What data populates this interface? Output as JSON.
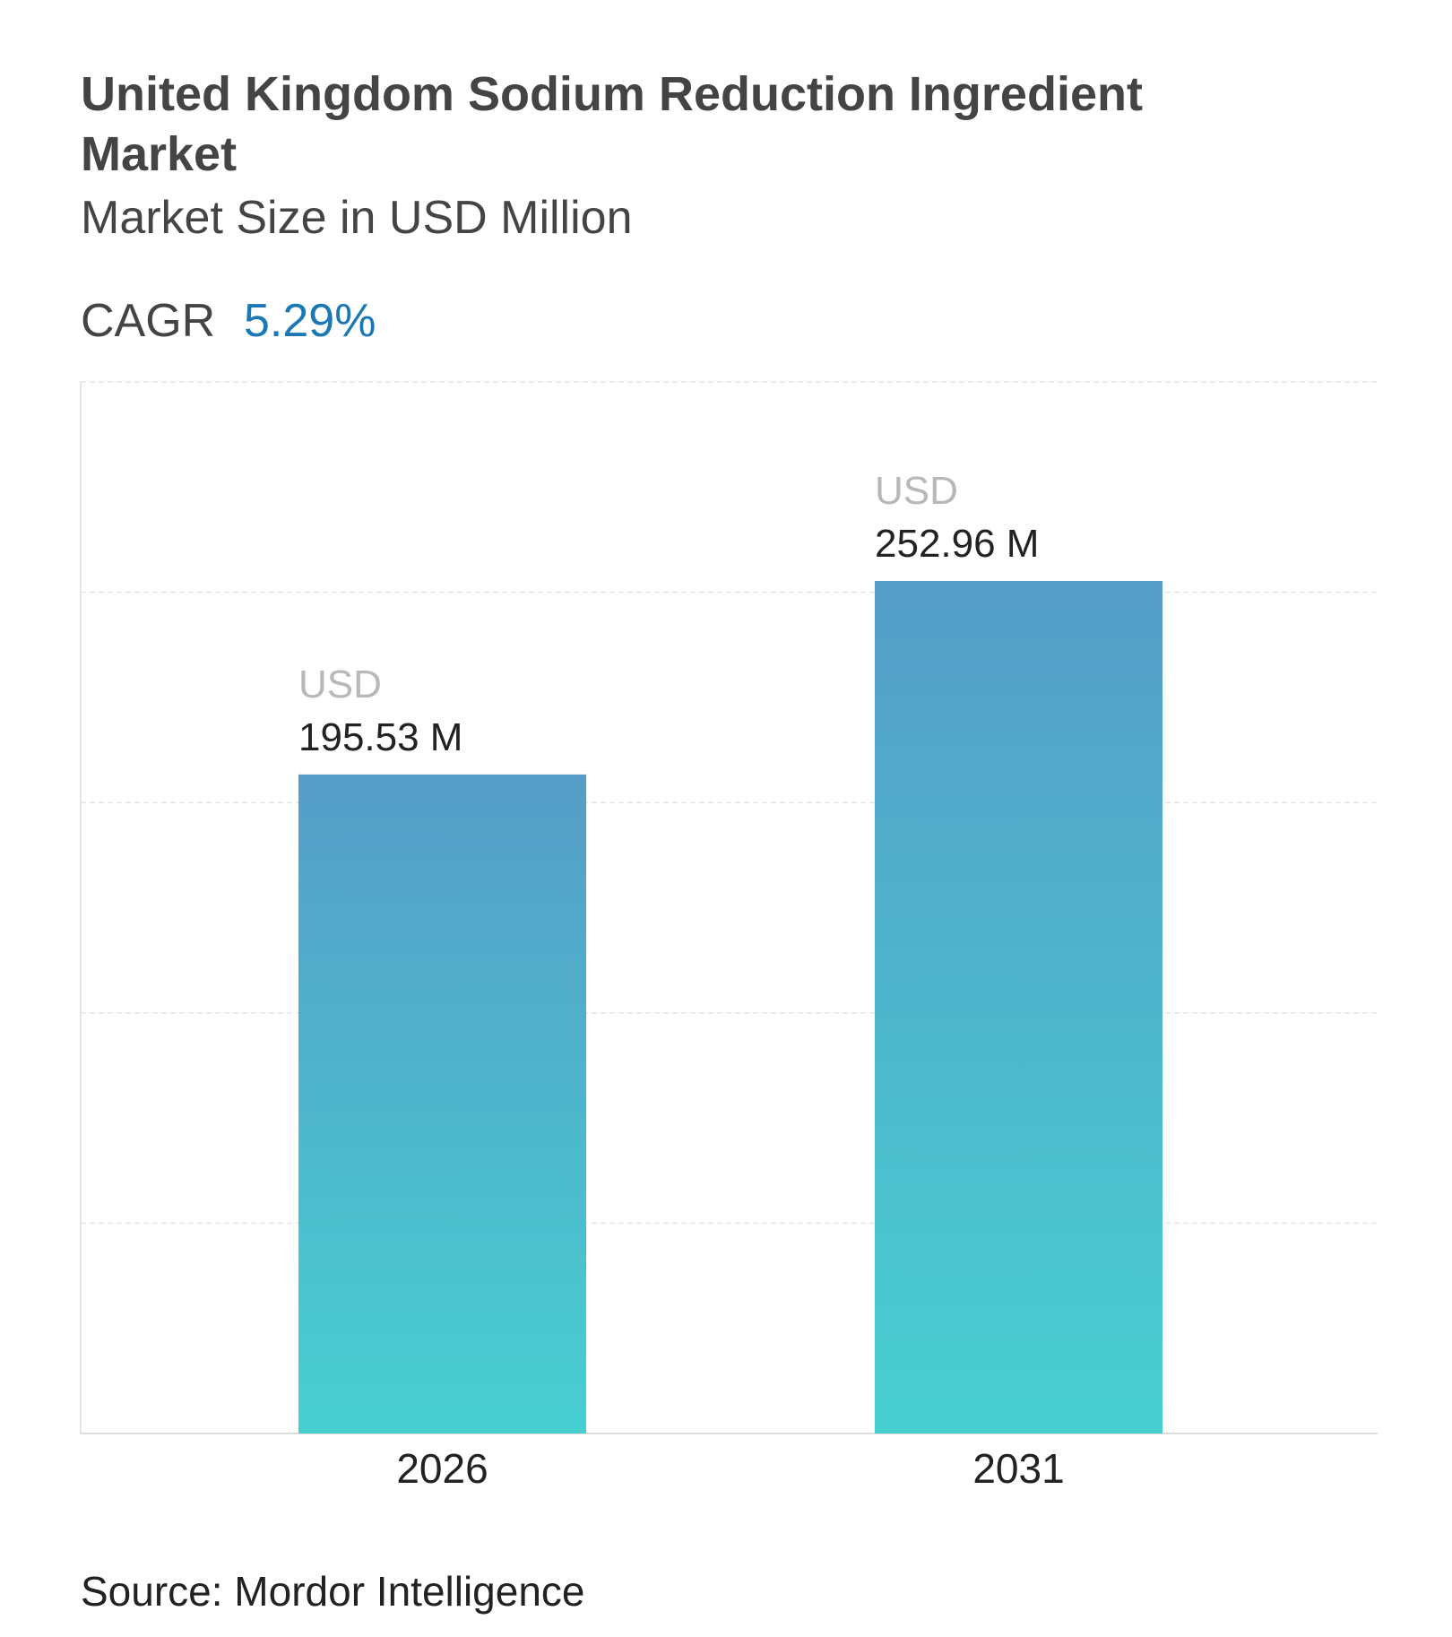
{
  "chart_data": {
    "type": "bar",
    "title": "United Kingdom Sodium Reduction Ingredient Market",
    "subtitle": "Market Size in USD Million",
    "cagr_label": "CAGR",
    "cagr_value": "5.29%",
    "categories": [
      "2026",
      "2031"
    ],
    "values": [
      195.53,
      252.96
    ],
    "value_label_prefix": "USD",
    "value_labels": [
      "195.53 M",
      "252.96 M"
    ],
    "color": [
      "#559dc8",
      "#47cfd0"
    ],
    "ylim": [
      0,
      312
    ],
    "grid": true,
    "source": "Source: Mordor Intelligence"
  }
}
